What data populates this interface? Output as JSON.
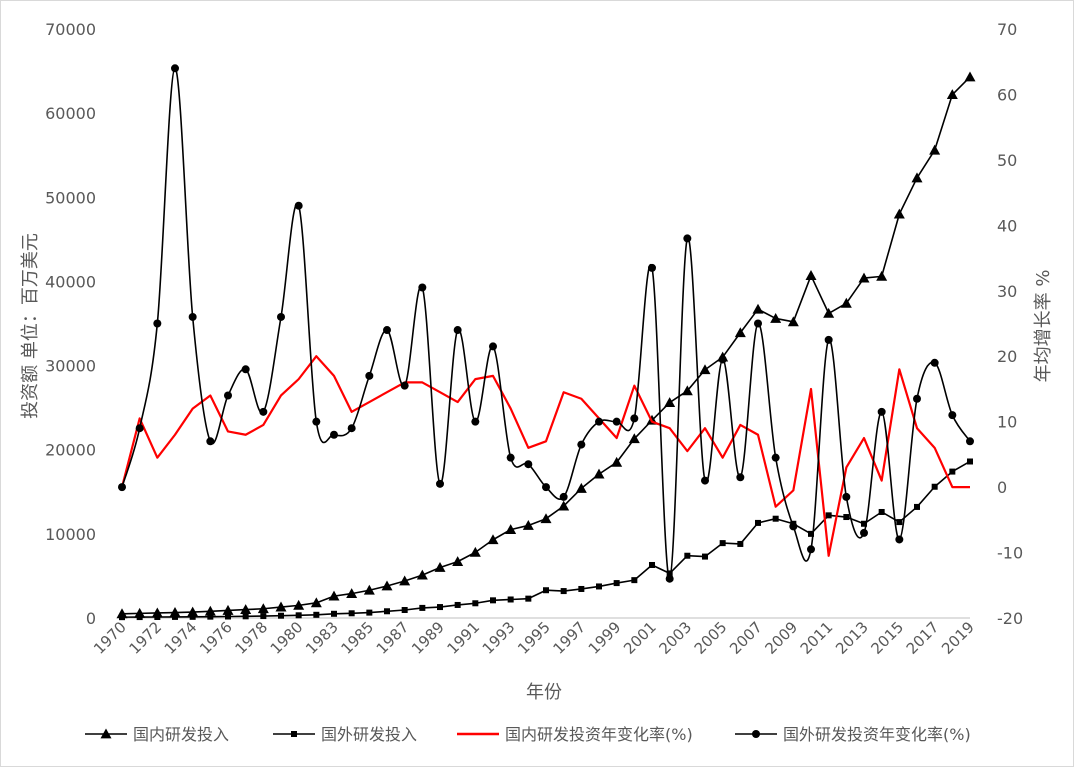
{
  "chart_data": {
    "type": "line",
    "xlabel": "年份",
    "ylabel_left": "投资额 单位：百万美元",
    "ylabel_right": "年均增长率 %",
    "ylim_left": [
      0,
      70000
    ],
    "ylim_right": [
      -20,
      70
    ],
    "yticks_left": [
      "0",
      "10000",
      "20000",
      "30000",
      "40000",
      "50000",
      "60000",
      "70000"
    ],
    "yticks_right": [
      "-20",
      "-10",
      "0",
      "10",
      "20",
      "30",
      "40",
      "50",
      "60",
      "70"
    ],
    "xtick_labels": [
      "1970",
      "1972",
      "1974",
      "1976",
      "1978",
      "1980",
      "1983",
      "1985",
      "1987",
      "1989",
      "1991",
      "1993",
      "1995",
      "1997",
      "1999",
      "2001",
      "2003",
      "2005",
      "2007",
      "2009",
      "2011",
      "2013",
      "2015",
      "2017",
      "2019"
    ],
    "categories": [
      "1970",
      "1971",
      "1972",
      "1973",
      "1974",
      "1975",
      "1976",
      "1977",
      "1978",
      "1979",
      "1980",
      "1981",
      "1983",
      "1984",
      "1985",
      "1986",
      "1987",
      "1988",
      "1989",
      "1990",
      "1991",
      "1992",
      "1993",
      "1994",
      "1995",
      "1996",
      "1997",
      "1998",
      "1999",
      "2000",
      "2001",
      "2002",
      "2003",
      "2004",
      "2005",
      "2006",
      "2007",
      "2008",
      "2009",
      "2010",
      "2011",
      "2012",
      "2013",
      "2014",
      "2015",
      "2016",
      "2017",
      "2018",
      "2019"
    ],
    "legend_position": "bottom",
    "grid": false,
    "series": [
      {
        "name": "国内研发投入",
        "axis": "left",
        "color": "#000000",
        "marker": "triangle",
        "values": [
          500,
          550,
          600,
          650,
          700,
          800,
          900,
          1000,
          1100,
          1300,
          1500,
          1800,
          2600,
          2900,
          3300,
          3800,
          4400,
          5100,
          6000,
          6700,
          7800,
          9300,
          10500,
          11000,
          11800,
          13300,
          15400,
          17100,
          18500,
          21300,
          23500,
          25600,
          27000,
          29500,
          31000,
          33900,
          36700,
          35600,
          35200,
          40700,
          36200,
          37400,
          40400,
          40600,
          48000,
          52300,
          55600,
          62200,
          64300
        ]
      },
      {
        "name": "国外研发投入",
        "axis": "left",
        "color": "#000000",
        "marker": "square",
        "values": [
          100,
          110,
          120,
          130,
          140,
          160,
          180,
          200,
          230,
          270,
          320,
          380,
          500,
          560,
          640,
          800,
          950,
          1200,
          1300,
          1550,
          1750,
          2100,
          2200,
          2300,
          3300,
          3200,
          3450,
          3750,
          4150,
          4500,
          6300,
          5300,
          7400,
          7300,
          8900,
          8800,
          11300,
          11800,
          11200,
          10000,
          12200,
          12000,
          11200,
          12600,
          11400,
          13200,
          15600,
          17400,
          18600
        ]
      },
      {
        "name": "国内研发投资年变化率(%)",
        "axis": "right",
        "color": "#ff0000",
        "marker": "none",
        "values": [
          0,
          10.5,
          4.5,
          8,
          12,
          14,
          8.5,
          8,
          9.5,
          14,
          16.5,
          20,
          17,
          11.5,
          13,
          14.5,
          16,
          16,
          14.5,
          13,
          16.5,
          17,
          12,
          6,
          7,
          14.5,
          13.5,
          10.5,
          7.5,
          15.5,
          10,
          9,
          5.5,
          9,
          4.5,
          9.5,
          8,
          -3,
          -0.5,
          15,
          -10.5,
          3,
          7.5,
          1,
          18,
          9,
          6,
          0,
          0
        ]
      },
      {
        "name": "国外研发投资年变化率(%)",
        "axis": "right",
        "color": "#000000",
        "marker": "circle",
        "values": [
          0,
          9,
          25,
          64,
          26,
          7,
          14,
          18,
          11.5,
          26,
          43,
          10,
          8,
          9,
          17,
          24,
          15.5,
          30.5,
          0.5,
          24,
          10,
          21.5,
          4.5,
          3.5,
          0,
          -1.5,
          6.5,
          10,
          10,
          10.5,
          33.5,
          -14,
          38,
          1,
          19.5,
          1.5,
          25,
          4.5,
          -6,
          -9.5,
          22.5,
          -1.5,
          -7,
          11.5,
          -8,
          13.5,
          19,
          11,
          7
        ]
      }
    ]
  }
}
